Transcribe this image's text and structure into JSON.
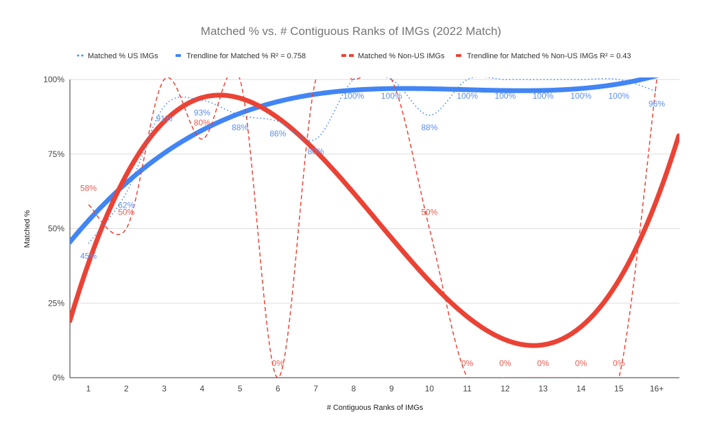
{
  "chart_data": {
    "type": "line",
    "title": "Matched % vs. # Contiguous Ranks of IMGs (2022 Match)",
    "xlabel": "# Contiguous Ranks of IMGs",
    "ylabel": "Matched %",
    "categories": [
      "1",
      "2",
      "3",
      "4",
      "5",
      "6",
      "7",
      "8",
      "9",
      "10",
      "11",
      "12",
      "13",
      "14",
      "15",
      "16+"
    ],
    "ylim": [
      0,
      100
    ],
    "yticks": [
      "0%",
      "25%",
      "50%",
      "75%",
      "100%"
    ],
    "grid": true,
    "legend_position": "top",
    "series": [
      {
        "name": "Matched % US IMGs",
        "color": "#4285f4",
        "style": "dotted",
        "smooth": true,
        "values": [
          45,
          62,
          91,
          93,
          88,
          86,
          80,
          100,
          100,
          88,
          100,
          100,
          100,
          100,
          100,
          96
        ]
      },
      {
        "name": "Matched % Non-US IMGs",
        "color": "#ea4335",
        "style": "dashed",
        "smooth": true,
        "values": [
          58,
          50,
          100,
          80,
          100,
          0,
          100,
          100,
          100,
          50,
          0,
          0,
          0,
          0,
          0,
          100
        ]
      }
    ],
    "trendlines": [
      {
        "name": "Trendline for Matched % R² = 0.758",
        "color": "#4285f4",
        "of_series": 0,
        "r2": 0.758,
        "type": "polynomial"
      },
      {
        "name": "Trendline for Matched % Non-US IMGs R² = 0.43",
        "color": "#ea4335",
        "of_series": 1,
        "r2": 0.43,
        "type": "polynomial"
      }
    ]
  }
}
